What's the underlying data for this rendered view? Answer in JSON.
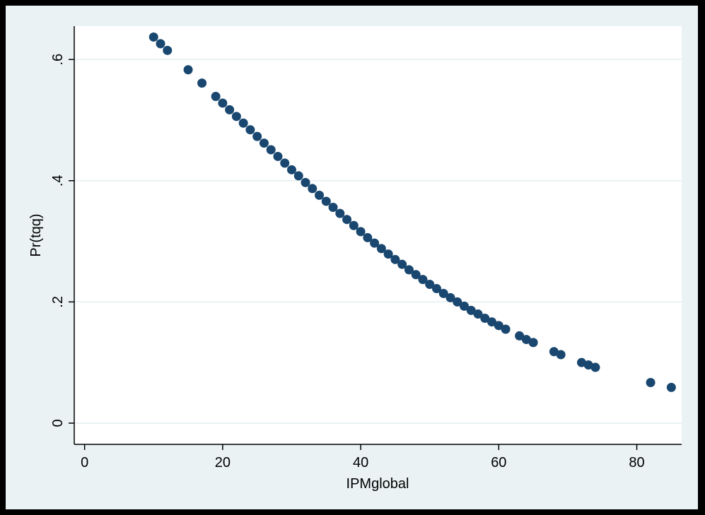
{
  "chart_data": {
    "type": "scatter",
    "title": "",
    "xlabel": "IPMglobal",
    "ylabel": "Pr(tqq)",
    "xlim": [
      -1.5,
      86.5
    ],
    "ylim": [
      -0.035,
      0.655
    ],
    "xticks": [
      0,
      20,
      40,
      60,
      80
    ],
    "yticks": [
      0,
      0.2,
      0.4,
      0.6
    ],
    "xtick_labels": [
      "0",
      "20",
      "40",
      "60",
      "80"
    ],
    "ytick_labels": [
      "0",
      ".2",
      ".4",
      ".6"
    ],
    "grid": "horizontal",
    "legend": "none",
    "colors": {
      "outer": "#eaf2f3",
      "plot_bg": "#ffffff",
      "grid": "#e4eef0",
      "marker": "#1a476f"
    },
    "series": [
      {
        "x": [
          10,
          11,
          12,
          15,
          17,
          19,
          20,
          21,
          22,
          23,
          24,
          25,
          26,
          27,
          28,
          29,
          30,
          31,
          32,
          33,
          34,
          35,
          36,
          37,
          38,
          39,
          40,
          41,
          42,
          43,
          44,
          45,
          46,
          47,
          48,
          49,
          50,
          51,
          52,
          53,
          54,
          55,
          56,
          57,
          58,
          59,
          60,
          61,
          63,
          64,
          65,
          68,
          69,
          72,
          73,
          74,
          82,
          85
        ],
        "y": [
          0.637,
          0.626,
          0.615,
          0.583,
          0.561,
          0.539,
          0.528,
          0.517,
          0.506,
          0.495,
          0.484,
          0.473,
          0.462,
          0.451,
          0.44,
          0.429,
          0.418,
          0.408,
          0.397,
          0.387,
          0.376,
          0.366,
          0.356,
          0.346,
          0.336,
          0.326,
          0.316,
          0.306,
          0.297,
          0.288,
          0.279,
          0.27,
          0.262,
          0.253,
          0.245,
          0.237,
          0.229,
          0.222,
          0.214,
          0.207,
          0.2,
          0.193,
          0.186,
          0.18,
          0.173,
          0.167,
          0.161,
          0.155,
          0.144,
          0.138,
          0.133,
          0.118,
          0.113,
          0.1,
          0.096,
          0.092,
          0.067,
          0.059
        ]
      }
    ]
  }
}
